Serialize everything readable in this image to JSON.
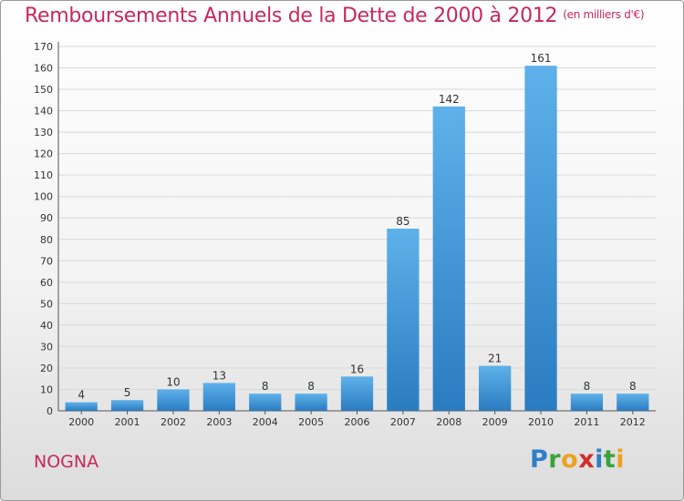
{
  "header": {
    "title": "Remboursements Annuels de la Dette de 2000 à 2012",
    "unit": "(en milliers d'€)"
  },
  "footer": {
    "place": "NOGNA",
    "logo_letters": [
      {
        "ch": "P",
        "color": "#2f7fc8"
      },
      {
        "ch": "r",
        "color": "#3aa23a"
      },
      {
        "ch": "o",
        "color": "#f0a020"
      },
      {
        "ch": "x",
        "color": "#d42b2b"
      },
      {
        "ch": "i",
        "color": "#2f7fc8"
      },
      {
        "ch": "t",
        "color": "#3aa23a"
      },
      {
        "ch": "i",
        "color": "#f0a020"
      }
    ]
  },
  "colors": {
    "title": "#c8285a",
    "bar_top": "#5eb1ea",
    "bar_bottom": "#2a7cc0"
  },
  "chart_data": {
    "type": "bar",
    "title": "Remboursements Annuels de la Dette de 2000 à 2012",
    "subtitle": "(en milliers d'€)",
    "categories": [
      "2000",
      "2001",
      "2002",
      "2003",
      "2004",
      "2005",
      "2006",
      "2007",
      "2008",
      "2009",
      "2010",
      "2011",
      "2012"
    ],
    "values": [
      4,
      5,
      10,
      13,
      8,
      8,
      16,
      85,
      142,
      21,
      161,
      8,
      8
    ],
    "ylim": [
      0,
      170
    ],
    "yticks": [
      0,
      10,
      20,
      30,
      40,
      50,
      60,
      70,
      80,
      90,
      100,
      110,
      120,
      130,
      140,
      150,
      160,
      170
    ],
    "grid": "horizontal",
    "data_labels": true
  }
}
